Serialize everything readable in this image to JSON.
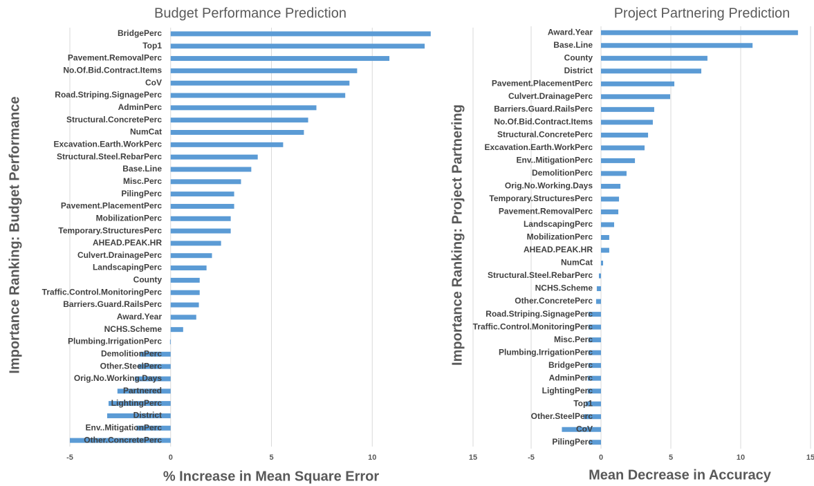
{
  "chart_data": [
    {
      "type": "bar",
      "orientation": "horizontal",
      "title": "Budget Performance Prediction",
      "x_label": "% Increase in Mean Square Error",
      "y_label": "Importance Ranking: Budget Performance",
      "color": "#5b9bd5",
      "grid": true,
      "xlim": [
        -5,
        15
      ],
      "xticks": [
        -5,
        0,
        5,
        10,
        15
      ],
      "categories": [
        "BridgePerc",
        "Top1",
        "Pavement.RemovalPerc",
        "No.Of.Bid.Contract.Items",
        "CoV",
        "Road.Striping.SignagePerc",
        "AdminPerc",
        "Structural.ConcretePerc",
        "NumCat",
        "Excavation.Earth.WorkPerc",
        "Structural.Steel.RebarPerc",
        "Base.Line",
        "Misc.Perc",
        "PilingPerc",
        "Pavement.PlacementPerc",
        "MobilizationPerc",
        "Temporary.StructuresPerc",
        "AHEAD.PEAK.HR",
        "Culvert.DrainagePerc",
        "LandscapingPerc",
        "County",
        "Traffic.Control.MonitoringPerc",
        "Barriers.Guard.RailsPerc",
        "Award.Year",
        "NCHS.Scheme",
        "Plumbing.IrrigationPerc",
        "DemolitionPerc",
        "Other.SteelPerc",
        "Orig.No.Working.Days",
        "Partnered",
        "LightingPerc",
        "District",
        "Env..MitigationPerc",
        "Other.ConcretePerc"
      ],
      "values": [
        12.9,
        12.6,
        10.85,
        9.25,
        8.87,
        8.66,
        7.23,
        6.82,
        6.61,
        5.58,
        4.32,
        4.0,
        3.49,
        3.15,
        3.15,
        2.98,
        2.98,
        2.5,
        2.05,
        1.78,
        1.44,
        1.44,
        1.4,
        1.27,
        0.62,
        -0.03,
        -1.5,
        -1.6,
        -1.78,
        -2.64,
        -3.08,
        -3.15,
        -1.7,
        -5.0
      ]
    },
    {
      "type": "bar",
      "orientation": "horizontal",
      "title": "Project Partnering Prediction",
      "x_label": "Mean Decrease in Accuracy",
      "y_label": "Importance Ranking: Project Partnering",
      "color": "#5b9bd5",
      "grid": true,
      "xlim": [
        -5,
        15
      ],
      "xticks": [
        -5,
        0,
        5,
        10,
        15
      ],
      "categories": [
        "Award.Year",
        "Base.Line",
        "County",
        "District",
        "Pavement.PlacementPerc",
        "Culvert.DrainagePerc",
        "Barriers.Guard.RailsPerc",
        "No.Of.Bid.Contract.Items",
        "Structural.ConcretePerc",
        "Excavation.Earth.WorkPerc",
        "Env..MitigationPerc",
        "DemolitionPerc",
        "Orig.No.Working.Days",
        "Temporary.StructuresPerc",
        "Pavement.RemovalPerc",
        "LandscapingPerc",
        "MobilizationPerc",
        "AHEAD.PEAK.HR",
        "NumCat",
        "Structural.Steel.RebarPerc",
        "NCHS.Scheme",
        "Other.ConcretePerc",
        "Road.Striping.SignagePerc",
        "Traffic.Control.MonitoringPerc",
        "Misc.Perc",
        "Plumbing.IrrigationPerc",
        "BridgePerc",
        "AdminPerc",
        "LightingPerc",
        "Top1",
        "Other.SteelPerc",
        "CoV",
        "PilingPerc"
      ],
      "values": [
        14.1,
        10.85,
        7.62,
        7.18,
        5.25,
        4.95,
        3.81,
        3.71,
        3.37,
        3.12,
        2.43,
        1.83,
        1.39,
        1.29,
        1.24,
        0.94,
        0.59,
        0.59,
        0.15,
        -0.15,
        -0.3,
        -0.35,
        -0.9,
        -0.9,
        -0.9,
        -0.9,
        -0.9,
        -0.95,
        -0.95,
        -1.1,
        -1.25,
        -2.8,
        -0.85
      ]
    }
  ]
}
